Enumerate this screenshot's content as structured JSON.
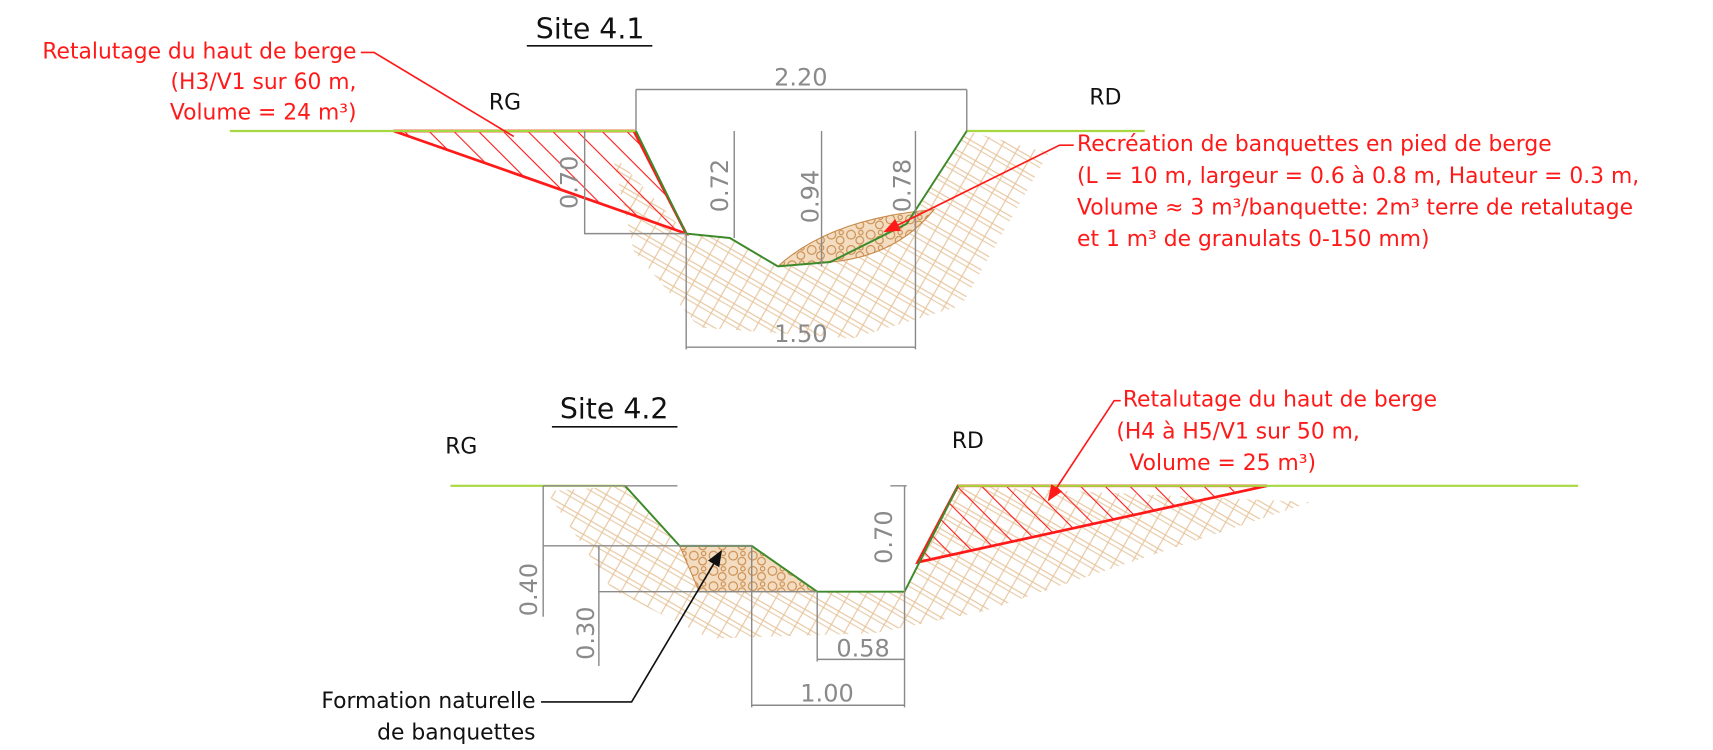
{
  "sites": [
    {
      "title": "Site 4.1",
      "left_bank": "RG",
      "right_bank": "RD",
      "dimensions": [
        "2.20",
        "0.70",
        "0.72",
        "0.94",
        "0.78",
        "1.50"
      ],
      "annotations": [
        {
          "lines": [
            "Retalutage du haut de berge",
            "(H3/V1 sur 60 m,",
            "Volume = 24 m³)"
          ]
        },
        {
          "lines": [
            "Recréation de banquettes en pied de berge",
            "(L = 10 m, largeur = 0.6 à 0.8 m, Hauteur = 0.3 m,",
            "Volume ≈ 3 m³/banquette: 2m³ terre de retalutage",
            "et 1 m³ de granulats 0-150 mm)"
          ]
        }
      ]
    },
    {
      "title": "Site 4.2",
      "left_bank": "RG",
      "right_bank": "RD",
      "dimensions": [
        "0.40",
        "0.30",
        "0.70",
        "0.58",
        "1.00"
      ],
      "annotations": [
        {
          "lines": [
            "Retalutage du haut de berge",
            "(H4 à H5/V1 sur 50 m,",
            "Volume = 25 m³)"
          ]
        },
        {
          "lines": [
            "Formation naturelle",
            "de banquettes"
          ]
        }
      ]
    }
  ]
}
